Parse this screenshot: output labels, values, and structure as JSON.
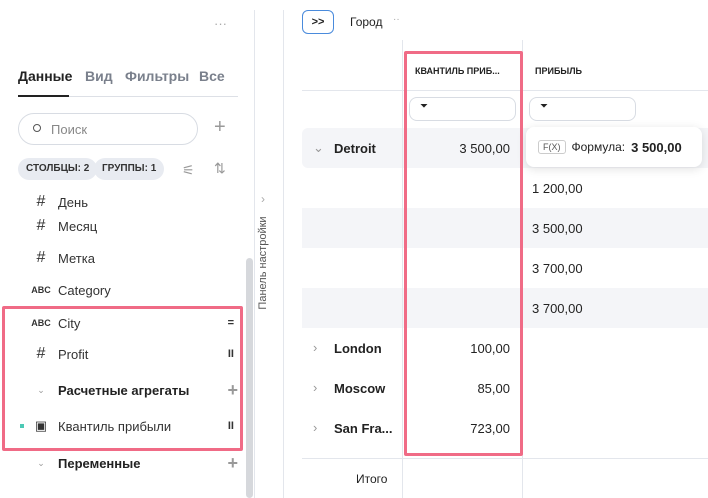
{
  "sidebar": {
    "more": "···",
    "tabs": [
      "Данные",
      "Вид",
      "Фильтры",
      "Все"
    ],
    "search_placeholder": "Поиск",
    "add": "+",
    "chips": [
      "СТОЛБЦЫ: 2",
      "ГРУППЫ: 1"
    ],
    "fields": [
      {
        "type": "#",
        "label": "День"
      },
      {
        "type": "#",
        "label": "Месяц"
      },
      {
        "type": "#",
        "label": "Метка"
      },
      {
        "type": "ABC",
        "label": "Category"
      },
      {
        "type": "ABC",
        "label": "City",
        "mark": "="
      },
      {
        "type": "#",
        "label": "Profit",
        "mark": "II"
      }
    ],
    "calc_section": "Расчетные агрегаты",
    "calc_item": "Квантиль прибыли",
    "calc_mark": "II",
    "vars_section": "Переменные"
  },
  "settings_panel": "Панель настройки",
  "toolbar": {
    "expand": ">>",
    "group": "Город",
    "more": "··"
  },
  "table": {
    "columns": [
      "КВАНТИЛЬ ПРИБ...",
      "ПРИБЫЛЬ"
    ],
    "rows": [
      {
        "city": "Detroit",
        "q": "3 500,00",
        "p": ""
      },
      {
        "city": "",
        "q": "",
        "p": "1 200,00"
      },
      {
        "city": "",
        "q": "",
        "p": "3 500,00"
      },
      {
        "city": "",
        "q": "",
        "p": "3 700,00"
      },
      {
        "city": "",
        "q": "",
        "p": "3 700,00"
      },
      {
        "city": "London",
        "q": "100,00",
        "p": ""
      },
      {
        "city": "Moscow",
        "q": "85,00",
        "p": ""
      },
      {
        "city": "San Fra...",
        "q": "723,00",
        "p": ""
      }
    ],
    "total": "Итого"
  },
  "tooltip": {
    "badge": "F(X)",
    "label": "Формула:",
    "value": "3 500,00"
  },
  "highlight_color": "#f06b86"
}
